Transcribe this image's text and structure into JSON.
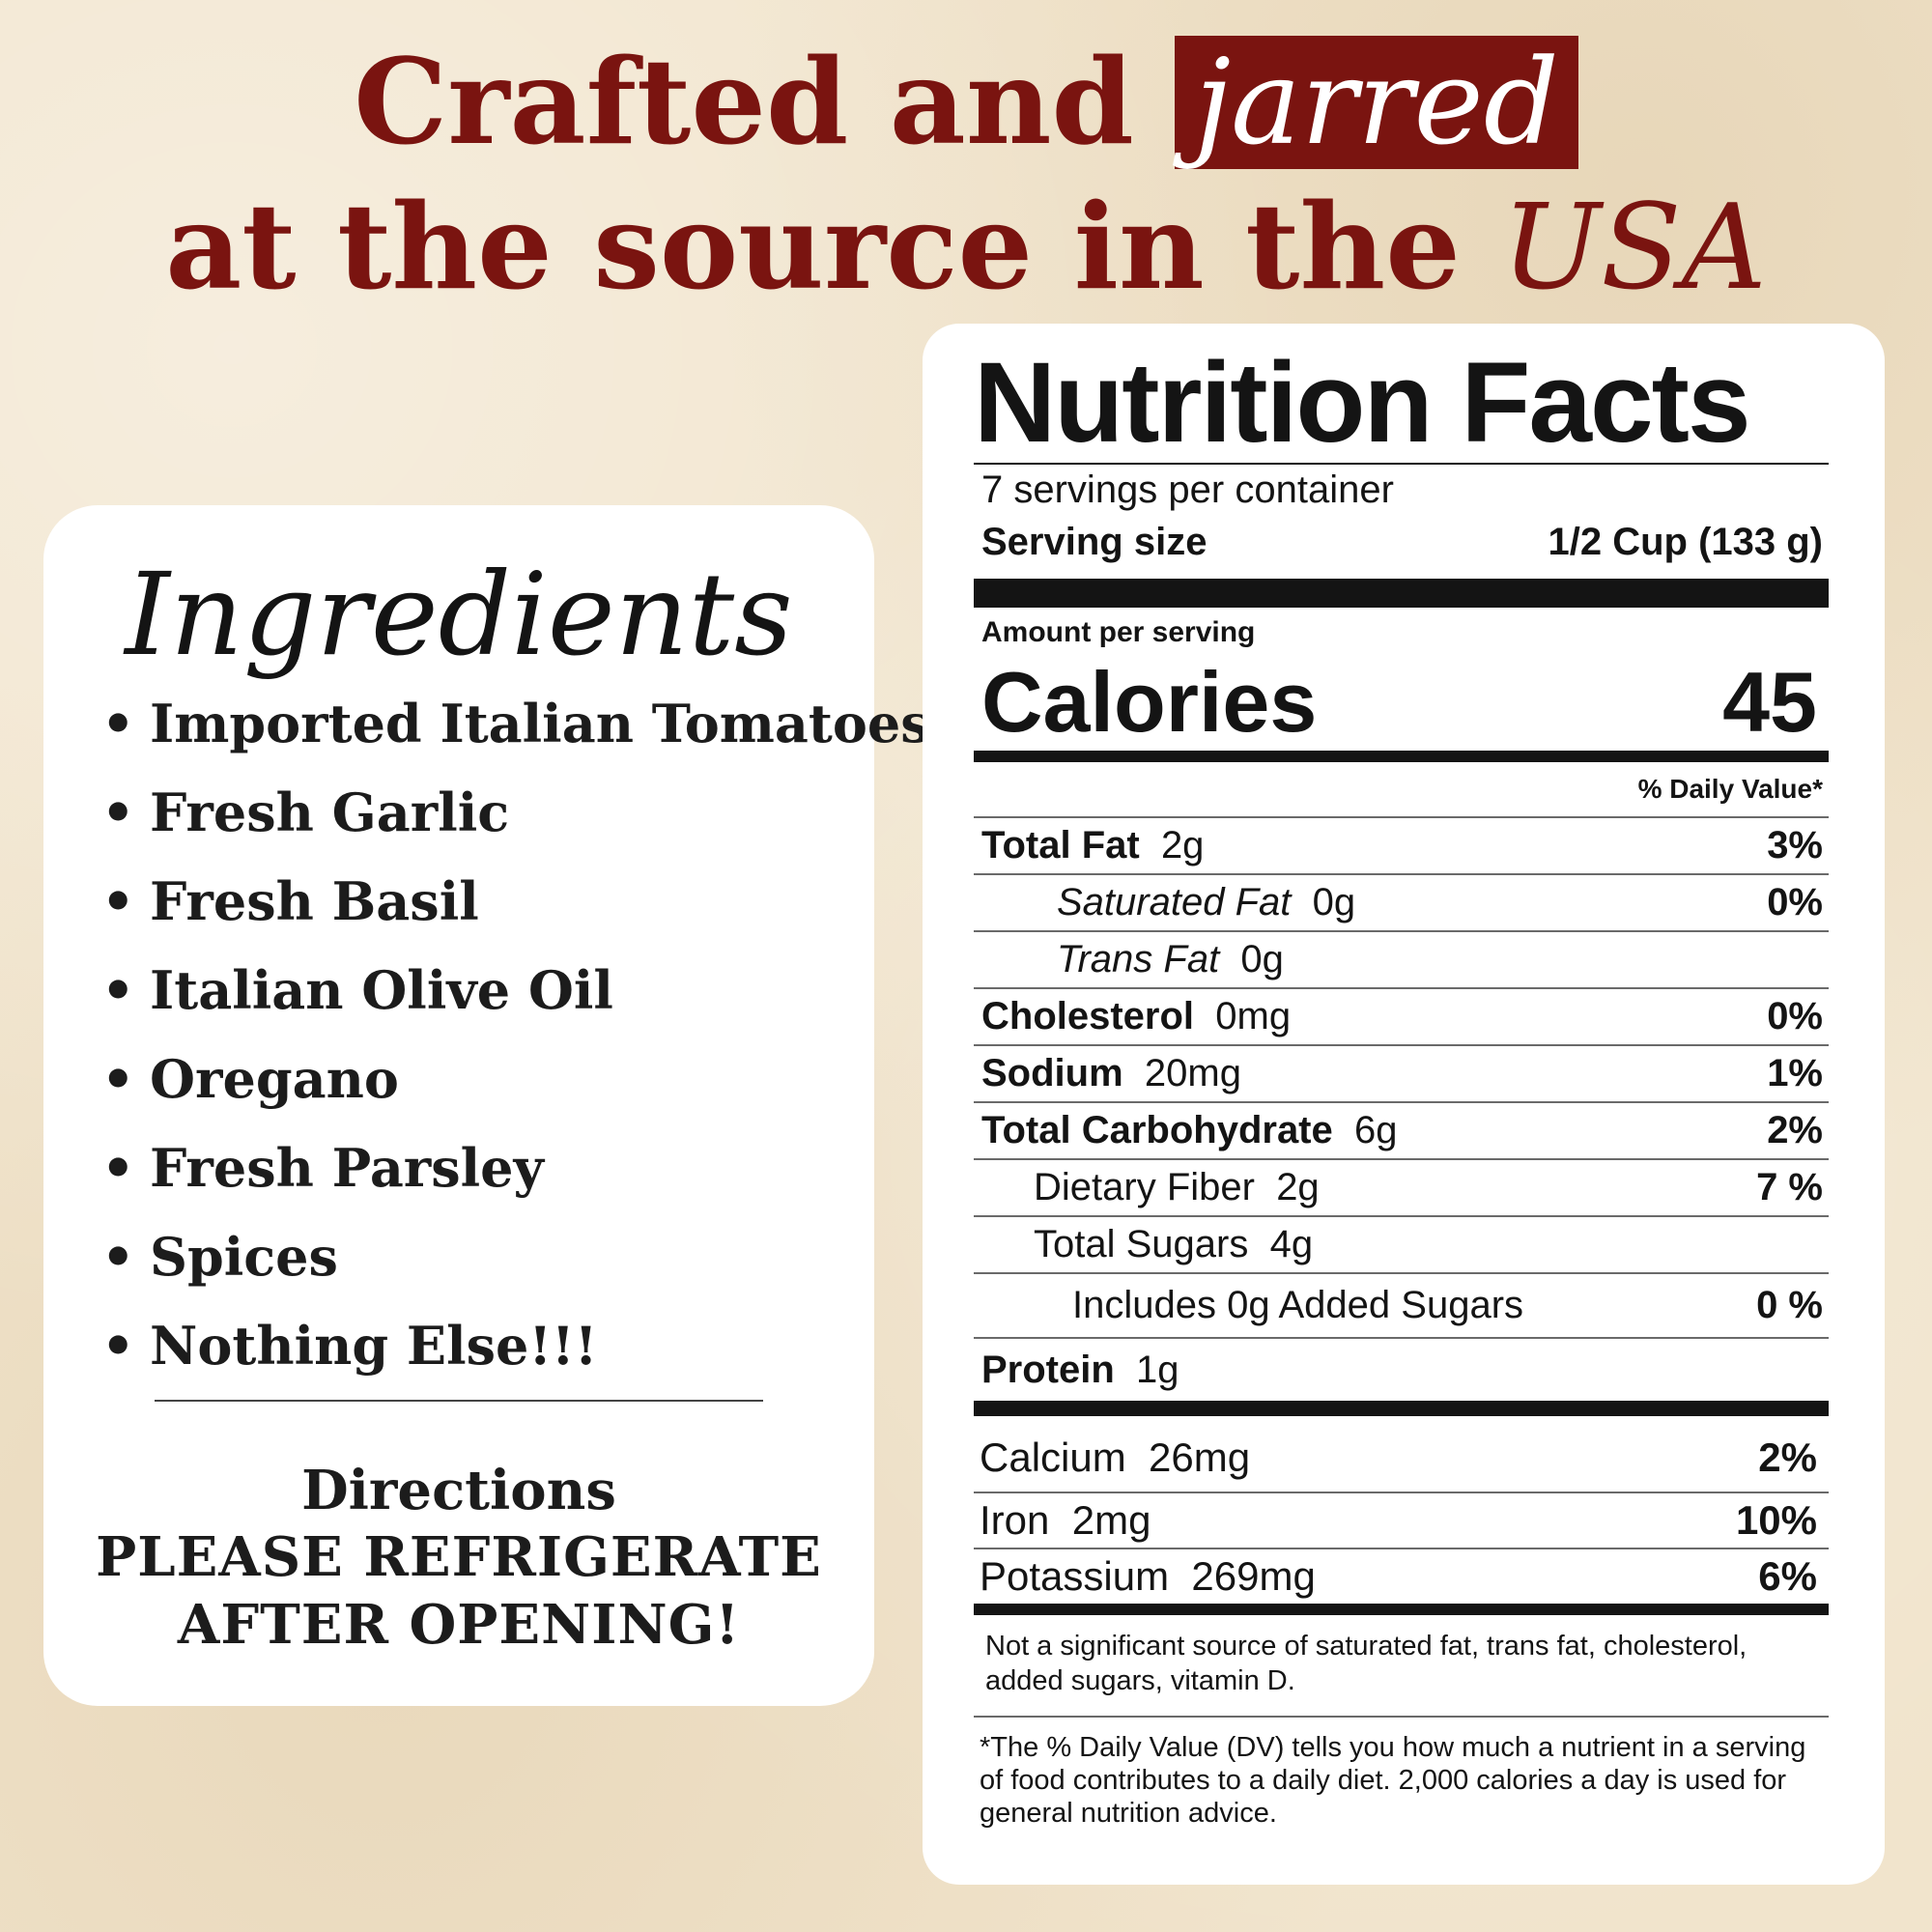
{
  "headline": {
    "line1_a": "Crafted and",
    "line1_box": "jarred",
    "line2_a": "at the source in the",
    "line2_italic": "USA"
  },
  "ingredients": {
    "title": "Ingredients",
    "items": [
      "Imported Italian Tomatoes",
      "Fresh Garlic",
      "Fresh Basil",
      "Italian Olive Oil",
      "Oregano",
      "Fresh Parsley",
      "Spices",
      "Nothing Else!!!"
    ],
    "directions_heading": "Directions",
    "directions_line1": "PLEASE REFRIGERATE",
    "directions_line2": "AFTER OPENING!"
  },
  "nutrition": {
    "title": "Nutrition Facts",
    "servings_per_container": "7 servings per container",
    "serving_size_label": "Serving size",
    "serving_size_value": "1/2 Cup (133 g)",
    "amount_per_serving": "Amount per serving",
    "calories_label": "Calories",
    "calories_value": "45",
    "daily_value_header": "% Daily Value*",
    "rows": [
      {
        "label": "Total Fat",
        "amount": "2g",
        "dv": "3%"
      },
      {
        "label": "Saturated Fat",
        "amount": "0g",
        "dv": "0%"
      },
      {
        "label": "Trans Fat",
        "amount": "0g",
        "dv": ""
      },
      {
        "label": "Cholesterol",
        "amount": "0mg",
        "dv": "0%"
      },
      {
        "label": "Sodium",
        "amount": "20mg",
        "dv": "1%"
      },
      {
        "label": "Total Carbohydrate",
        "amount": "6g",
        "dv": "2%"
      },
      {
        "label": "Dietary Fiber",
        "amount": "2g",
        "dv": "7 %"
      },
      {
        "label": "Total Sugars",
        "amount": "4g",
        "dv": ""
      },
      {
        "label": "Includes 0g Added Sugars",
        "amount": "",
        "dv": "0 %"
      },
      {
        "label": "Protein",
        "amount": "1g",
        "dv": ""
      }
    ],
    "vitamins": [
      {
        "label": "Calcium",
        "amount": "26mg",
        "dv": "2%"
      },
      {
        "label": "Iron",
        "amount": "2mg",
        "dv": "10%"
      },
      {
        "label": "Potassium",
        "amount": "269mg",
        "dv": "6%"
      }
    ],
    "footnote1": "Not a significant source of saturated fat, trans fat, cholesterol, added sugars, vitamin D.",
    "footnote2": "*The % Daily Value (DV) tells you how much a nutrient in a serving of food contributes to a daily diet. 2,000 calories a day is used for general nutrition advice."
  },
  "colors": {
    "background": "#f1e4cc",
    "accent": "#7a1410",
    "card": "#ffffff",
    "text": "#141414"
  }
}
